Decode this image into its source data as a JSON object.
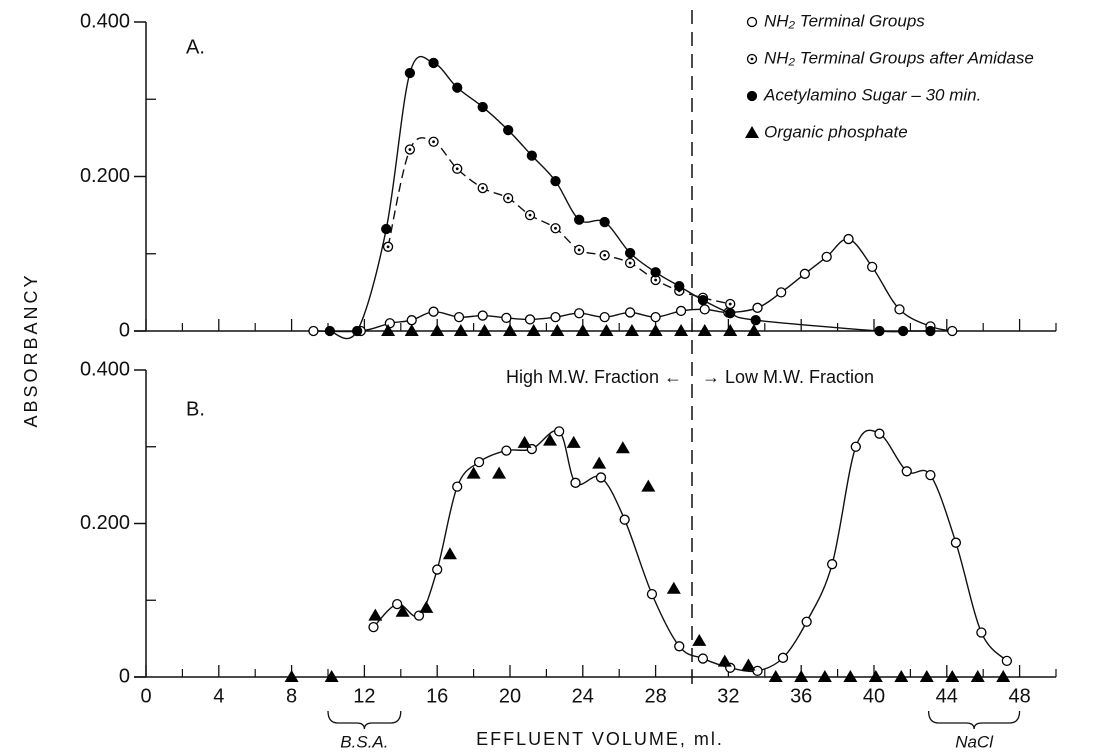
{
  "chart_data": [
    {
      "type": "scatter",
      "panel_label": "A.",
      "ylabel": "ABSORBANCY",
      "divider_x": 30,
      "xlim": [
        0,
        50
      ],
      "ylim": [
        0,
        0.4
      ],
      "yticks": [
        0,
        {
          "value": 0.2,
          "label": "0.200"
        },
        {
          "value": 0.4,
          "label": "0.400"
        }
      ],
      "yminor": [
        0.1,
        0.3
      ],
      "legend": "upper right",
      "series": [
        {
          "name": "NH₂ Terminal Groups",
          "color": "#000000",
          "marker": "circle-open",
          "line": "solid",
          "x": [
            9.2,
            11.8,
            13.4,
            14.6,
            15.8,
            17.2,
            18.5,
            19.8,
            21.1,
            22.5,
            23.8,
            25.2,
            26.6,
            28,
            29.4,
            30.7,
            32,
            33.6,
            34.9,
            36.2,
            37.4,
            38.6,
            39.9,
            41.4,
            43.1,
            44.3
          ],
          "values": [
            0,
            0,
            0.01,
            0.014,
            0.025,
            0.018,
            0.02,
            0.017,
            0.015,
            0.018,
            0.023,
            0.018,
            0.024,
            0.018,
            0.026,
            0.028,
            0.024,
            0.03,
            0.05,
            0.074,
            0.096,
            0.119,
            0.083,
            0.028,
            0.006,
            0
          ]
        },
        {
          "name": "NH₂ Terminal Groups  after Amidase",
          "color": "#000000",
          "marker": "circle-dot",
          "line": "dashed",
          "x": [
            13.3,
            14.5,
            15.8,
            17.1,
            18.5,
            19.9,
            21.1,
            22.5,
            23.8,
            25.2,
            26.6,
            28,
            29.3,
            30.6,
            32.1
          ],
          "values": [
            0.109,
            0.235,
            0.245,
            0.21,
            0.185,
            0.172,
            0.15,
            0.133,
            0.105,
            0.098,
            0.088,
            0.066,
            0.052,
            0.043,
            0.035
          ]
        },
        {
          "name": "Acetylamino Sugar – 30 min.",
          "color": "#000000",
          "marker": "circle-filled",
          "line": "solid",
          "x": [
            10.1,
            11.6,
            13.2,
            14.5,
            15.8,
            17.1,
            18.5,
            19.9,
            21.2,
            22.5,
            23.8,
            25.2,
            26.6,
            28,
            29.3,
            30.6,
            32.1,
            33.5,
            40.3,
            41.6,
            43.1
          ],
          "values": [
            0,
            0,
            0.132,
            0.334,
            0.347,
            0.315,
            0.29,
            0.26,
            0.227,
            0.194,
            0.144,
            0.141,
            0.101,
            0.076,
            0.058,
            0.04,
            0.023,
            0.014,
            0,
            0,
            0
          ]
        },
        {
          "name": "Organic phosphate",
          "color": "#000000",
          "marker": "triangle",
          "line": "none",
          "x": [
            13.3,
            14.6,
            16,
            17.3,
            18.6,
            20,
            21.3,
            22.6,
            24,
            25.3,
            26.7,
            28,
            29.4,
            30.7,
            32.1,
            33.4
          ],
          "values": [
            0,
            0,
            0,
            0,
            0,
            0,
            0,
            0,
            0,
            0,
            0,
            0,
            0,
            0,
            0,
            0
          ]
        }
      ]
    },
    {
      "type": "scatter",
      "panel_label": "B.",
      "xlabel": "EFFLUENT VOLUME, ml.",
      "xlim": [
        0,
        50
      ],
      "ylim": [
        0,
        0.4
      ],
      "xticks": [
        0,
        4,
        8,
        12,
        16,
        20,
        24,
        28,
        32,
        36,
        40,
        44,
        48
      ],
      "xminor": [
        2,
        6,
        10,
        14,
        18,
        22,
        26,
        30,
        34,
        38,
        42,
        46,
        50
      ],
      "yticks": [
        0,
        {
          "value": 0.2,
          "label": "0.200"
        },
        {
          "value": 0.4,
          "label": "0.400"
        }
      ],
      "yminor": [
        0.1,
        0.3
      ],
      "fraction_labels": [
        "High M.W. Fraction ←",
        "→ Low M.W. Fraction"
      ],
      "brackets": [
        {
          "text": "B.S.A.",
          "x_range": [
            10,
            14
          ]
        },
        {
          "text": "NaCl",
          "x_range": [
            43,
            48
          ]
        }
      ],
      "series": [
        {
          "color": "#000000",
          "marker": "circle-open",
          "line": "solid",
          "x": [
            12.5,
            13.8,
            15.0,
            16.0,
            17.1,
            18.3,
            19.8,
            21.2,
            22.7,
            23.6,
            25.0,
            26.3,
            27.8,
            29.3,
            30.6,
            32.1,
            33.6,
            35.0,
            36.3,
            37.7,
            39.0,
            40.3,
            41.8,
            43.1,
            44.5,
            45.9,
            47.3
          ],
          "values": [
            0.065,
            0.095,
            0.08,
            0.14,
            0.248,
            0.28,
            0.295,
            0.297,
            0.32,
            0.253,
            0.26,
            0.205,
            0.108,
            0.04,
            0.024,
            0.012,
            0.008,
            0.025,
            0.072,
            0.147,
            0.3,
            0.317,
            0.268,
            0.263,
            0.175,
            0.058,
            0.021
          ]
        },
        {
          "color": "#000000",
          "marker": "triangle",
          "line": "none",
          "x": [
            8,
            10.2,
            12.6,
            14.1,
            15.4,
            16.7,
            18,
            19.4,
            20.8,
            22.2,
            23.5,
            24.9,
            26.2,
            27.6,
            29,
            30.4,
            31.8,
            33.1,
            34.6,
            36,
            37.3,
            38.7,
            40.1,
            41.5,
            42.9,
            44.3,
            45.7,
            47.1
          ],
          "values": [
            0,
            0,
            0.08,
            0.085,
            0.09,
            0.16,
            0.265,
            0.265,
            0.305,
            0.308,
            0.305,
            0.278,
            0.298,
            0.248,
            0.115,
            0.047,
            0.02,
            0.015,
            0,
            0,
            0,
            0,
            0,
            0,
            0,
            0,
            0,
            0
          ]
        }
      ]
    }
  ]
}
